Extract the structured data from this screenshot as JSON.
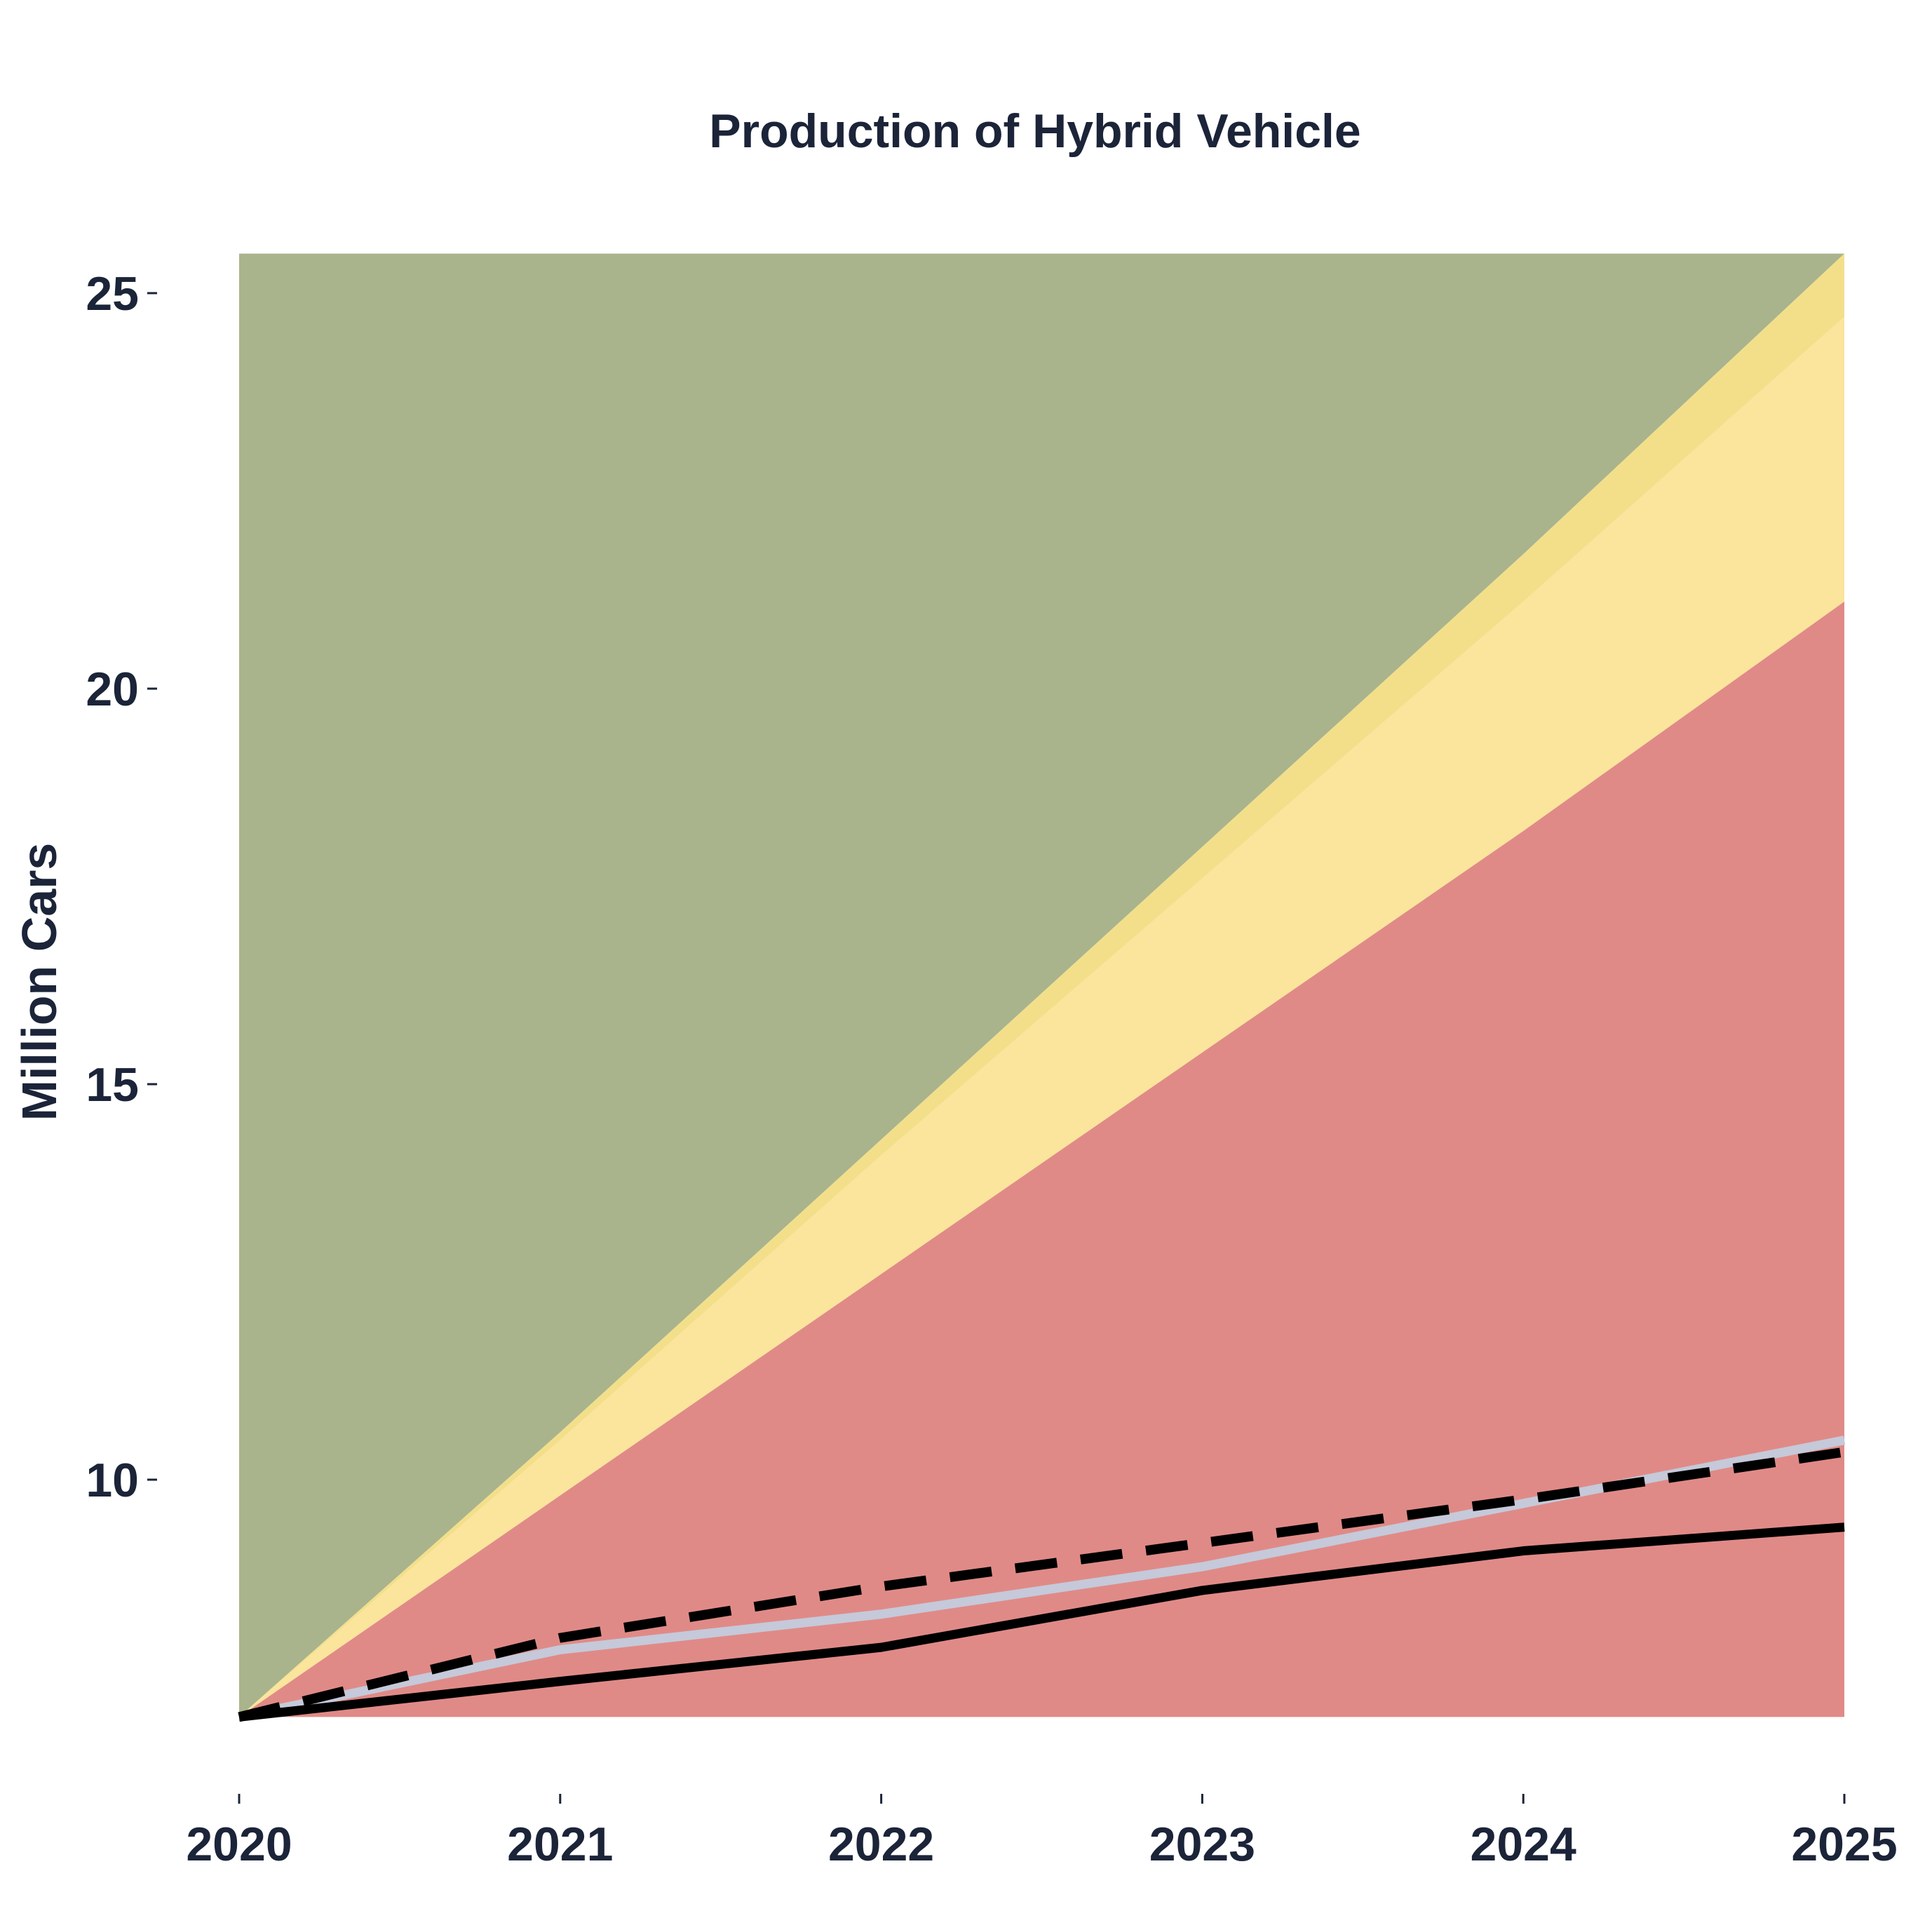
{
  "chart_data": {
    "type": "area",
    "title": "Production of Hybrid Vehicle",
    "xlabel": "",
    "ylabel": "Million Cars",
    "x": [
      2020,
      2021,
      2022,
      2023,
      2024,
      2025
    ],
    "xlim": [
      2020,
      2025
    ],
    "ylim": [
      7,
      25.5
    ],
    "y_ticks": [
      10,
      15,
      20,
      25
    ],
    "grid": false,
    "legend": "none",
    "bands": [
      {
        "color": "#a9b48c",
        "opacity": 1,
        "lower": [
          7,
          10.6,
          14.3,
          18.0,
          21.7,
          25.5
        ],
        "upper": [
          25.5,
          25.5,
          25.5,
          25.5,
          25.5,
          25.5
        ]
      },
      {
        "color": "#f3df8a",
        "opacity": 1,
        "lower": [
          7,
          10.5,
          14.1,
          17.6,
          21.1,
          24.7
        ],
        "upper": [
          7,
          10.6,
          14.3,
          18.0,
          21.7,
          25.5
        ]
      },
      {
        "color": "#fbe49c",
        "opacity": 1,
        "lower": [
          7,
          9.8,
          12.6,
          15.4,
          18.2,
          21.1
        ],
        "upper": [
          7,
          10.5,
          14.1,
          17.6,
          21.1,
          24.7
        ]
      },
      {
        "color": "#e08a87",
        "opacity": 1,
        "lower": [
          7,
          7,
          7,
          7,
          7,
          7
        ],
        "upper": [
          7,
          9.8,
          12.6,
          15.4,
          18.2,
          21.1
        ]
      }
    ],
    "series": [
      {
        "values": [
          7.0,
          7.85,
          8.3,
          8.9,
          9.7,
          10.5
        ],
        "color": "#c5c9d9",
        "dash": "solid"
      },
      {
        "values": [
          7.0,
          8.0,
          8.65,
          9.2,
          9.75,
          10.35
        ],
        "color": "#000000",
        "dash": "dashed"
      },
      {
        "values": [
          7.0,
          7.45,
          7.88,
          8.6,
          9.1,
          9.4
        ],
        "color": "#000000",
        "dash": "solid"
      }
    ]
  }
}
